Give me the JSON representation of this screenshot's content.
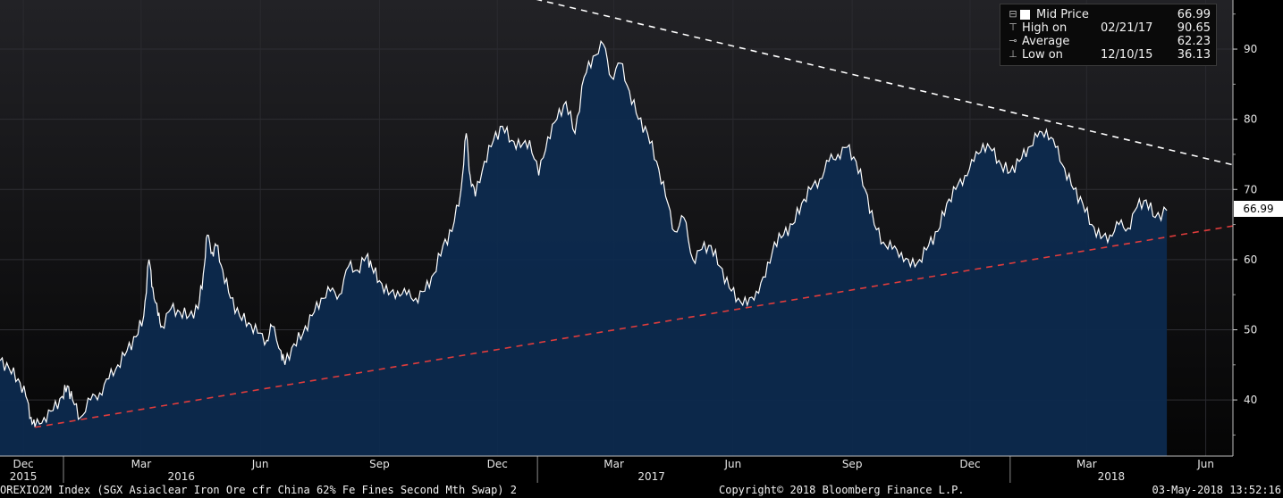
{
  "chart_data": {
    "type": "area",
    "title": "",
    "y_ticks": [
      40,
      50,
      60,
      70,
      80,
      90
    ],
    "ylim": [
      32,
      97
    ],
    "xlim": [
      "2015-11-13",
      "2018-06-22"
    ],
    "x_ticks": [
      {
        "date": "2015-12-01",
        "label": "Dec"
      },
      {
        "date": "2016-03-01",
        "label": "Mar"
      },
      {
        "date": "2016-06-01",
        "label": "Jun"
      },
      {
        "date": "2016-09-01",
        "label": "Sep"
      },
      {
        "date": "2016-12-01",
        "label": "Dec"
      },
      {
        "date": "2017-03-01",
        "label": "Mar"
      },
      {
        "date": "2017-06-01",
        "label": "Jun"
      },
      {
        "date": "2017-09-01",
        "label": "Sep"
      },
      {
        "date": "2017-12-01",
        "label": "Dec"
      },
      {
        "date": "2018-03-01",
        "label": "Mar"
      },
      {
        "date": "2018-06-01",
        "label": "Jun"
      }
    ],
    "year_labels": [
      {
        "date": "2015-12-01",
        "label": "2015"
      },
      {
        "date": "2016-04-01",
        "label": "2016"
      },
      {
        "date": "2017-03-30",
        "label": "2017"
      },
      {
        "date": "2018-03-20",
        "label": "2018"
      }
    ],
    "series": [
      {
        "name": "Mid Price",
        "color": "#ffffff",
        "fill": "#0d2a4e",
        "points": [
          [
            "2015-11-13",
            45.6
          ],
          [
            "2015-11-20",
            44.5
          ],
          [
            "2015-11-27",
            43.0
          ],
          [
            "2015-12-03",
            40.5
          ],
          [
            "2015-12-07",
            37.5
          ],
          [
            "2015-12-10",
            36.13
          ],
          [
            "2015-12-17",
            37.5
          ],
          [
            "2015-12-24",
            38.5
          ],
          [
            "2015-12-31",
            40.5
          ],
          [
            "2016-01-04",
            42.0
          ],
          [
            "2016-01-08",
            40.0
          ],
          [
            "2016-01-14",
            37.5
          ],
          [
            "2016-01-22",
            40.0
          ],
          [
            "2016-01-29",
            41.0
          ],
          [
            "2016-02-05",
            43.0
          ],
          [
            "2016-02-12",
            45.0
          ],
          [
            "2016-02-19",
            47.0
          ],
          [
            "2016-02-26",
            49.0
          ],
          [
            "2016-03-03",
            52.0
          ],
          [
            "2016-03-07",
            60.0
          ],
          [
            "2016-03-10",
            56.0
          ],
          [
            "2016-03-14",
            52.0
          ],
          [
            "2016-03-17",
            50.5
          ],
          [
            "2016-03-24",
            53.0
          ],
          [
            "2016-03-31",
            52.5
          ],
          [
            "2016-04-07",
            52.0
          ],
          [
            "2016-04-14",
            53.0
          ],
          [
            "2016-04-18",
            58.0
          ],
          [
            "2016-04-21",
            63.5
          ],
          [
            "2016-04-25",
            61.0
          ],
          [
            "2016-04-28",
            62.0
          ],
          [
            "2016-05-03",
            58.5
          ],
          [
            "2016-05-09",
            54.5
          ],
          [
            "2016-05-16",
            52.0
          ],
          [
            "2016-05-23",
            51.0
          ],
          [
            "2016-05-30",
            49.5
          ],
          [
            "2016-06-06",
            48.5
          ],
          [
            "2016-06-10",
            50.5
          ],
          [
            "2016-06-17",
            47.0
          ],
          [
            "2016-06-20",
            45.0
          ],
          [
            "2016-06-27",
            48.0
          ],
          [
            "2016-07-04",
            49.5
          ],
          [
            "2016-07-11",
            52.0
          ],
          [
            "2016-07-18",
            54.5
          ],
          [
            "2016-07-25",
            55.5
          ],
          [
            "2016-08-01",
            55.0
          ],
          [
            "2016-08-08",
            59.0
          ],
          [
            "2016-08-15",
            58.5
          ],
          [
            "2016-08-22",
            60.5
          ],
          [
            "2016-08-26",
            59.0
          ],
          [
            "2016-09-01",
            57.0
          ],
          [
            "2016-09-08",
            55.0
          ],
          [
            "2016-09-15",
            55.5
          ],
          [
            "2016-09-22",
            55.0
          ],
          [
            "2016-09-29",
            54.5
          ],
          [
            "2016-10-06",
            55.5
          ],
          [
            "2016-10-13",
            58.0
          ],
          [
            "2016-10-20",
            62.0
          ],
          [
            "2016-10-27",
            64.0
          ],
          [
            "2016-11-03",
            70.0
          ],
          [
            "2016-11-07",
            78.0
          ],
          [
            "2016-11-10",
            72.0
          ],
          [
            "2016-11-14",
            69.0
          ],
          [
            "2016-11-21",
            74.0
          ],
          [
            "2016-11-28",
            77.0
          ],
          [
            "2016-12-05",
            79.0
          ],
          [
            "2016-12-12",
            77.0
          ],
          [
            "2016-12-19",
            76.0
          ],
          [
            "2016-12-26",
            77.0
          ],
          [
            "2017-01-02",
            72.0
          ],
          [
            "2017-01-09",
            77.5
          ],
          [
            "2017-01-16",
            80.0
          ],
          [
            "2017-01-23",
            82.5
          ],
          [
            "2017-01-30",
            78.0
          ],
          [
            "2017-02-06",
            86.0
          ],
          [
            "2017-02-13",
            89.0
          ],
          [
            "2017-02-21",
            90.65
          ],
          [
            "2017-02-27",
            86.0
          ],
          [
            "2017-03-06",
            88.0
          ],
          [
            "2017-03-13",
            84.0
          ],
          [
            "2017-03-20",
            80.0
          ],
          [
            "2017-03-27",
            78.0
          ],
          [
            "2017-04-03",
            74.0
          ],
          [
            "2017-04-10",
            69.0
          ],
          [
            "2017-04-17",
            64.0
          ],
          [
            "2017-04-24",
            66.0
          ],
          [
            "2017-05-01",
            60.0
          ],
          [
            "2017-05-08",
            61.5
          ],
          [
            "2017-05-15",
            62.0
          ],
          [
            "2017-05-22",
            59.0
          ],
          [
            "2017-05-29",
            56.0
          ],
          [
            "2017-06-05",
            54.5
          ],
          [
            "2017-06-12",
            53.5
          ],
          [
            "2017-06-19",
            55.5
          ],
          [
            "2017-06-26",
            57.5
          ],
          [
            "2017-07-03",
            62.5
          ],
          [
            "2017-07-10",
            63.5
          ],
          [
            "2017-07-17",
            65.0
          ],
          [
            "2017-07-24",
            68.0
          ],
          [
            "2017-07-31",
            70.0
          ],
          [
            "2017-08-07",
            71.5
          ],
          [
            "2017-08-14",
            74.0
          ],
          [
            "2017-08-21",
            75.0
          ],
          [
            "2017-08-28",
            76.0
          ],
          [
            "2017-09-04",
            74.0
          ],
          [
            "2017-09-11",
            70.0
          ],
          [
            "2017-09-18",
            65.0
          ],
          [
            "2017-09-25",
            62.5
          ],
          [
            "2017-10-02",
            61.5
          ],
          [
            "2017-10-09",
            61.0
          ],
          [
            "2017-10-16",
            59.0
          ],
          [
            "2017-10-23",
            60.0
          ],
          [
            "2017-10-30",
            62.0
          ],
          [
            "2017-11-06",
            64.0
          ],
          [
            "2017-11-13",
            68.0
          ],
          [
            "2017-11-20",
            70.0
          ],
          [
            "2017-11-27",
            72.0
          ],
          [
            "2017-12-04",
            74.0
          ],
          [
            "2017-12-11",
            76.5
          ],
          [
            "2017-12-18",
            75.5
          ],
          [
            "2017-12-25",
            73.5
          ],
          [
            "2018-01-01",
            72.5
          ],
          [
            "2018-01-08",
            74.0
          ],
          [
            "2018-01-15",
            76.0
          ],
          [
            "2018-01-22",
            77.5
          ],
          [
            "2018-01-29",
            78.5
          ],
          [
            "2018-02-05",
            76.0
          ],
          [
            "2018-02-12",
            73.0
          ],
          [
            "2018-02-19",
            70.0
          ],
          [
            "2018-02-26",
            68.0
          ],
          [
            "2018-03-05",
            65.0
          ],
          [
            "2018-03-12",
            63.0
          ],
          [
            "2018-03-19",
            63.5
          ],
          [
            "2018-03-26",
            65.0
          ],
          [
            "2018-04-02",
            64.5
          ],
          [
            "2018-04-09",
            67.5
          ],
          [
            "2018-04-16",
            68.5
          ],
          [
            "2018-04-23",
            66.0
          ],
          [
            "2018-05-02",
            66.99
          ]
        ]
      },
      {
        "name": "Trendline (resistance)",
        "color": "#ffffff",
        "style": "dashed",
        "points": [
          [
            "2016-12-22",
            97.5
          ],
          [
            "2018-06-22",
            73.5
          ]
        ]
      },
      {
        "name": "Trendline (support)",
        "color": "#e03c3c",
        "style": "dashed",
        "points": [
          [
            "2015-12-10",
            36.1
          ],
          [
            "2018-06-22",
            64.8
          ]
        ]
      }
    ],
    "last_value_label": "66.99"
  },
  "legend": {
    "rows": [
      {
        "icon": "square-swatch-icon",
        "label": "Mid Price",
        "date": "",
        "value": "66.99"
      },
      {
        "icon": "high-marker-icon",
        "label": "High on",
        "date": "02/21/17",
        "value": "90.65"
      },
      {
        "icon": "average-marker-icon",
        "label": "Average",
        "date": "",
        "value": "62.23"
      },
      {
        "icon": "low-marker-icon",
        "label": "Low on",
        "date": "12/10/15",
        "value": "36.13"
      }
    ]
  },
  "footer": {
    "ticker": "OREXIO2M Index (SGX Asiaclear Iron Ore cfr China 62% Fe Fines Second Mth Swap) 2",
    "copyright": "Copyright© 2018 Bloomberg Finance L.P.",
    "timestamp": "03-May-2018 13:52:16"
  }
}
